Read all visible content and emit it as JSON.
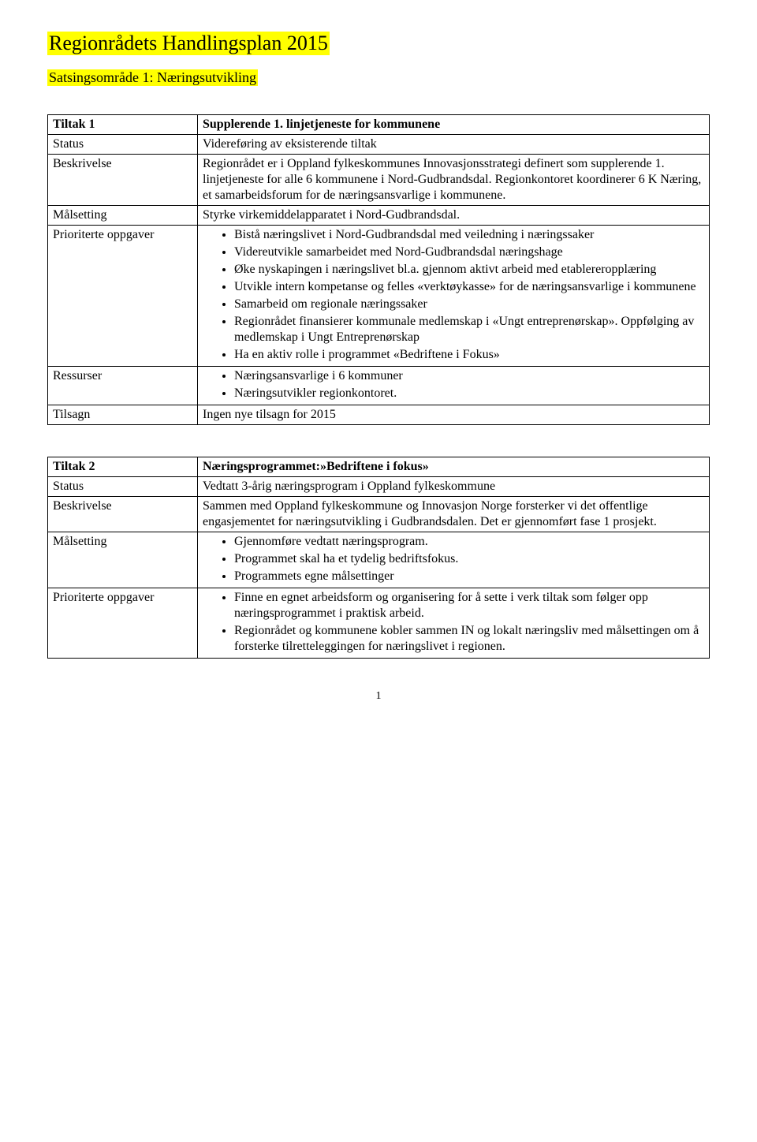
{
  "colors": {
    "highlight": "#ffff00",
    "text": "#000000",
    "background": "#ffffff",
    "border": "#000000"
  },
  "typography": {
    "body_font": "Times New Roman",
    "body_size_pt": 12,
    "title_size_pt": 20,
    "subtitle_size_pt": 14
  },
  "page": {
    "title": "Regionrådets Handlingsplan 2015",
    "subtitle": "Satsingsområde 1: Næringsutvikling",
    "page_number": "1"
  },
  "table1": {
    "rows": {
      "tiltak": {
        "label": "Tiltak 1",
        "value": "Supplerende 1. linjetjeneste for kommunene"
      },
      "status": {
        "label": "Status",
        "value": "Videreføring av eksisterende tiltak"
      },
      "beskrivelse": {
        "label": "Beskrivelse",
        "value": "Regionrådet er i Oppland fylkeskommunes Innovasjonsstrategi definert som supplerende 1. linjetjeneste for alle 6 kommunene i Nord-Gudbrandsdal. Regionkontoret koordinerer 6 K Næring, et samarbeidsforum for de næringsansvarlige i kommunene."
      },
      "malsetting": {
        "label": "Målsetting",
        "value": "Styrke virkemiddelapparatet i Nord-Gudbrandsdal."
      },
      "prioriterte": {
        "label": "Prioriterte oppgaver",
        "items": [
          "Bistå næringslivet i Nord-Gudbrandsdal med veiledning i næringssaker",
          "Videreutvikle samarbeidet med Nord-Gudbrandsdal næringshage",
          "Øke nyskapingen i næringslivet bl.a. gjennom aktivt arbeid med etablereropplæring",
          "Utvikle intern kompetanse og felles «verktøykasse» for de næringsansvarlige i kommunene",
          "Samarbeid om regionale næringssaker",
          "Regionrådet finansierer kommunale medlemskap i «Ungt entreprenørskap». Oppfølging av medlemskap i Ungt Entreprenørskap",
          "Ha en aktiv rolle i programmet «Bedriftene i Fokus»"
        ]
      },
      "ressurser": {
        "label": "Ressurser",
        "items": [
          "Næringsansvarlige i 6 kommuner",
          "Næringsutvikler regionkontoret."
        ]
      },
      "tilsagn": {
        "label": "Tilsagn",
        "value": "Ingen nye tilsagn for 2015"
      }
    }
  },
  "table2": {
    "rows": {
      "tiltak": {
        "label": "Tiltak 2",
        "value": "Næringsprogrammet:»Bedriftene i fokus»"
      },
      "status": {
        "label": "Status",
        "value": "Vedtatt 3-årig næringsprogram i Oppland fylkeskommune"
      },
      "beskrivelse": {
        "label": "Beskrivelse",
        "value": "Sammen med Oppland fylkeskommune og Innovasjon Norge forsterker vi  det offentlige engasjementet for næringsutvikling i Gudbrandsdalen. Det er gjennomført fase 1 prosjekt."
      },
      "malsetting": {
        "label": "Målsetting",
        "items": [
          "Gjennomføre vedtatt næringsprogram.",
          "Programmet skal ha et tydelig bedriftsfokus.",
          "Programmets egne målsettinger"
        ]
      },
      "prioriterte": {
        "label": "Prioriterte oppgaver",
        "items": [
          "Finne en egnet arbeidsform og organisering for å sette i verk tiltak som følger opp næringsprogrammet i praktisk arbeid.",
          "Regionrådet og kommunene kobler sammen IN og lokalt næringsliv med målsettingen om å forsterke tilretteleggingen for næringslivet i regionen."
        ]
      }
    }
  }
}
